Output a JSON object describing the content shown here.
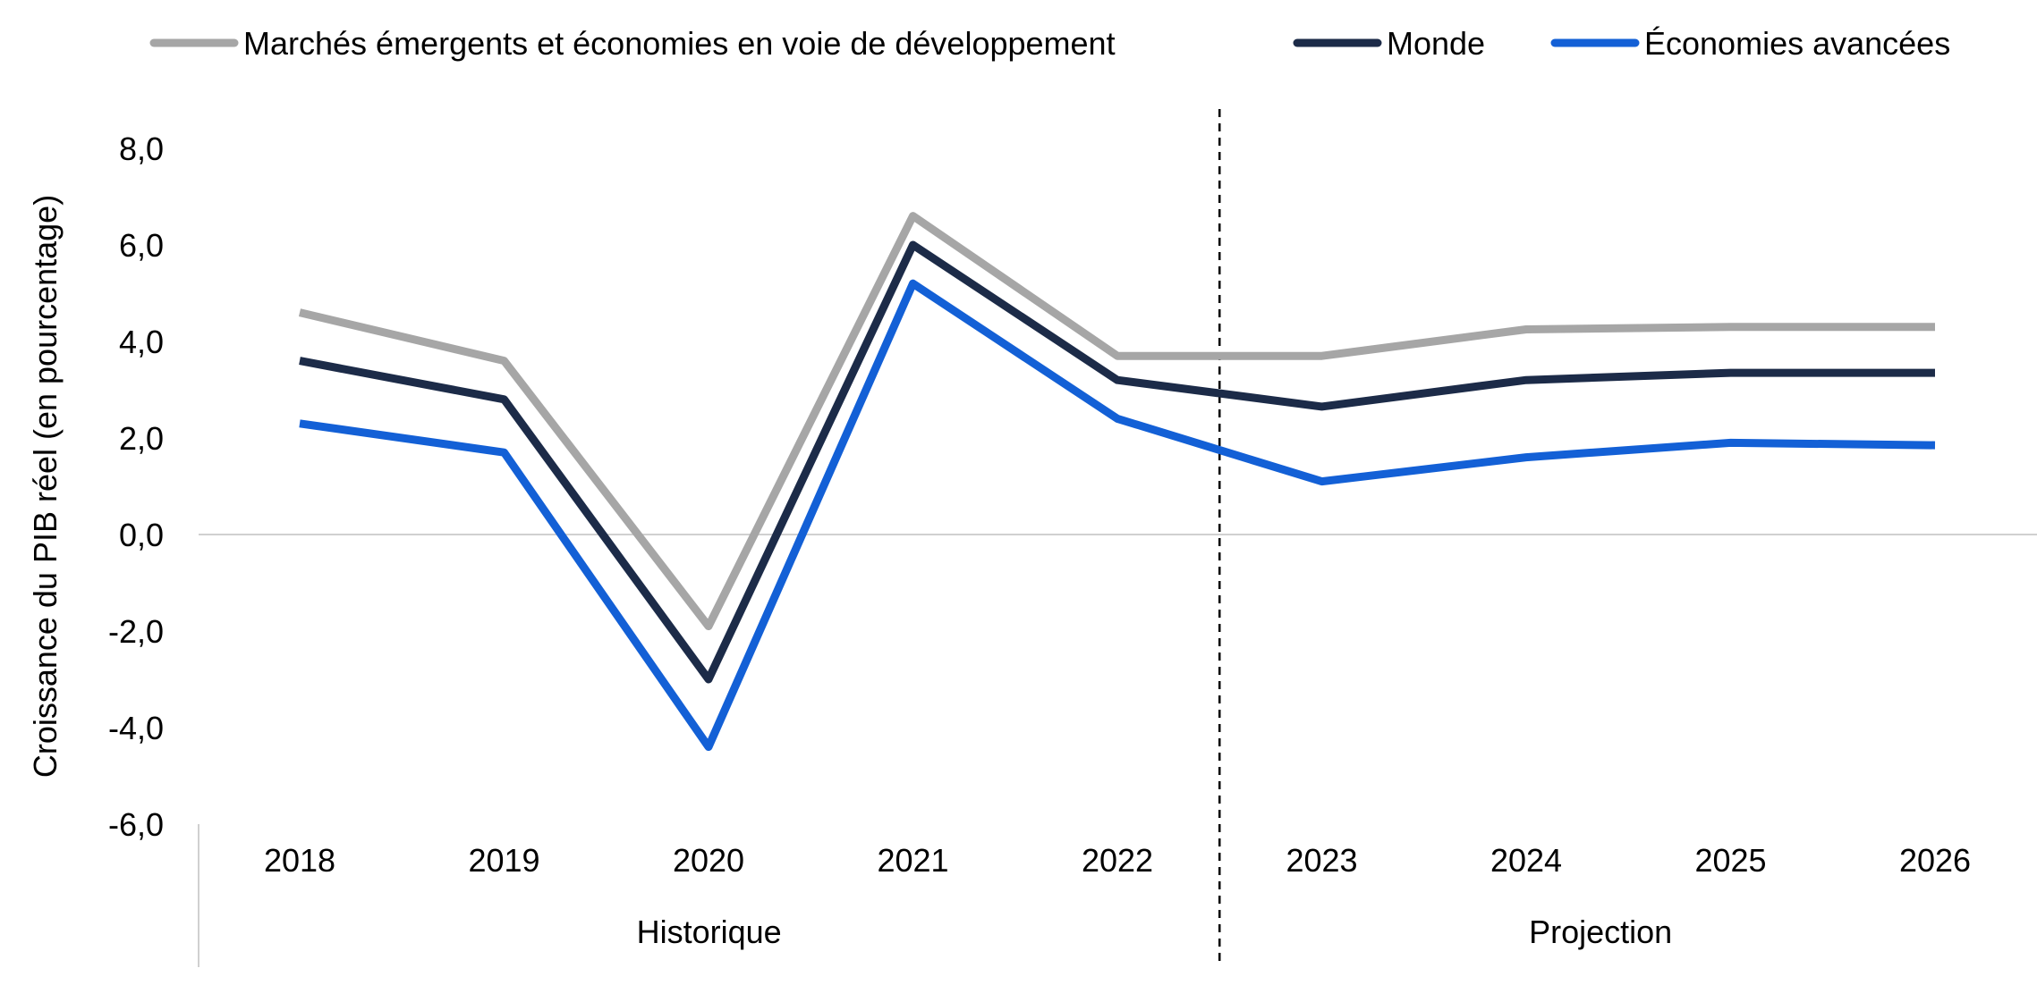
{
  "chart_data": {
    "type": "line",
    "title": "",
    "ylabel": "Croissance du PIB réel (en pourcentage)",
    "xlabel": "",
    "ylim": [
      -6,
      8
    ],
    "yticks": [
      8,
      6,
      4,
      2,
      0,
      -2,
      -4,
      -6
    ],
    "ytick_labels": [
      "8,0",
      "6,0",
      "4,0",
      "2,0",
      "0,0",
      "-2,0",
      "-4,0",
      "-6,0"
    ],
    "categories": [
      "2018",
      "2019",
      "2020",
      "2021",
      "2022",
      "2023",
      "2024",
      "2025",
      "2026"
    ],
    "series": [
      {
        "name": "Marchés émergents et économies en voie de développement",
        "color": "#a6a6a6",
        "values": [
          4.6,
          3.6,
          -1.9,
          6.6,
          3.7,
          3.7,
          4.25,
          4.3,
          4.3
        ]
      },
      {
        "name": "Monde",
        "color": "#1c2b48",
        "values": [
          3.6,
          2.8,
          -3.0,
          6.0,
          3.2,
          2.65,
          3.2,
          3.35,
          3.35
        ]
      },
      {
        "name": "Économies avancées",
        "color": "#1360d6",
        "values": [
          2.3,
          1.7,
          -4.4,
          5.2,
          2.4,
          1.1,
          1.6,
          1.9,
          1.85
        ]
      }
    ],
    "period_divider_after": "2022",
    "period_labels": [
      "Historique",
      "Projection"
    ],
    "grid": false,
    "zero_line": true,
    "legend_position": "top"
  }
}
